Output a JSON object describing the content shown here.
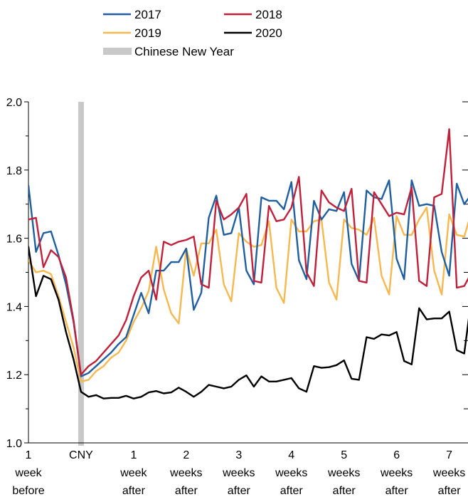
{
  "chart_data": {
    "type": "line",
    "ylim": [
      1.0,
      2.0
    ],
    "yticks": [
      {
        "value": 1.0,
        "label": "1.0"
      },
      {
        "value": 1.2,
        "label": "1.2"
      },
      {
        "value": 1.4,
        "label": "1.4"
      },
      {
        "value": 1.6,
        "label": "1.6"
      },
      {
        "value": 1.8,
        "label": "1.8"
      },
      {
        "value": 2.0,
        "label": "2.0"
      }
    ],
    "x_ticks": [
      {
        "day": -7,
        "lines": [
          "1",
          "week",
          "before"
        ]
      },
      {
        "day": 0,
        "lines": [
          "CNY"
        ]
      },
      {
        "day": 7,
        "lines": [
          "1",
          "week",
          "after"
        ]
      },
      {
        "day": 14,
        "lines": [
          "2",
          "weeks",
          "after"
        ]
      },
      {
        "day": 21,
        "lines": [
          "3",
          "weeks",
          "after"
        ]
      },
      {
        "day": 28,
        "lines": [
          "4",
          "weeks",
          "after"
        ]
      },
      {
        "day": 35,
        "lines": [
          "5",
          "weeks",
          "after"
        ]
      },
      {
        "day": 42,
        "lines": [
          "6",
          "weeks",
          "after"
        ]
      },
      {
        "day": 49,
        "lines": [
          "7",
          "weeks",
          "after"
        ]
      }
    ],
    "x_range": [
      -7,
      51.5
    ],
    "x": [
      -7,
      -6,
      -5,
      -4,
      -3,
      -2,
      -1,
      0,
      1,
      2,
      3,
      4,
      5,
      6,
      7,
      8,
      9,
      10,
      11,
      12,
      13,
      14,
      15,
      16,
      17,
      18,
      19,
      20,
      21,
      22,
      23,
      24,
      25,
      26,
      27,
      28,
      29,
      30,
      31,
      32,
      33,
      34,
      35,
      36,
      37,
      38,
      39,
      40,
      41,
      42,
      43,
      44,
      45,
      46,
      47,
      48,
      49,
      50,
      51,
      52
    ],
    "series": [
      {
        "name": "2017",
        "color": "#1f5fa0",
        "values": [
          1.755,
          1.56,
          1.615,
          1.62,
          1.55,
          1.465,
          1.355,
          1.195,
          1.205,
          1.225,
          1.245,
          1.265,
          1.29,
          1.31,
          1.375,
          1.44,
          1.38,
          1.505,
          1.505,
          1.53,
          1.53,
          1.57,
          1.39,
          1.44,
          1.66,
          1.725,
          1.61,
          1.615,
          1.69,
          1.505,
          1.465,
          1.72,
          1.71,
          1.71,
          1.685,
          1.765,
          1.535,
          1.48,
          1.71,
          1.655,
          1.685,
          1.68,
          1.735,
          1.525,
          1.475,
          1.74,
          1.72,
          1.715,
          1.77,
          1.54,
          1.48,
          1.77,
          1.695,
          1.7,
          1.695,
          1.56,
          1.49,
          1.76,
          1.7,
          1.73
        ]
      },
      {
        "name": "2018",
        "color": "#c0203a",
        "values": [
          1.655,
          1.66,
          1.515,
          1.565,
          1.545,
          1.485,
          1.36,
          1.2,
          1.225,
          1.24,
          1.265,
          1.29,
          1.315,
          1.36,
          1.43,
          1.485,
          1.505,
          1.42,
          1.59,
          1.58,
          1.59,
          1.595,
          1.605,
          1.465,
          1.455,
          1.71,
          1.655,
          1.67,
          1.69,
          1.73,
          1.475,
          1.47,
          1.695,
          1.65,
          1.655,
          1.69,
          1.78,
          1.5,
          1.46,
          1.74,
          1.705,
          1.69,
          1.68,
          1.745,
          1.475,
          1.47,
          1.735,
          1.7,
          1.665,
          1.675,
          1.67,
          1.75,
          1.475,
          1.46,
          1.72,
          1.73,
          1.92,
          1.455,
          1.46,
          1.5
        ]
      },
      {
        "name": "2019",
        "color": "#f7b84f",
        "values": [
          1.535,
          1.5,
          1.505,
          1.495,
          1.43,
          1.355,
          1.28,
          1.18,
          1.185,
          1.21,
          1.225,
          1.25,
          1.265,
          1.3,
          1.355,
          1.395,
          1.445,
          1.575,
          1.45,
          1.38,
          1.35,
          1.57,
          1.49,
          1.585,
          1.585,
          1.625,
          1.465,
          1.415,
          1.615,
          1.59,
          1.575,
          1.58,
          1.65,
          1.455,
          1.41,
          1.655,
          1.62,
          1.62,
          1.65,
          1.655,
          1.47,
          1.42,
          1.655,
          1.63,
          1.625,
          1.61,
          1.66,
          1.49,
          1.435,
          1.665,
          1.61,
          1.61,
          1.655,
          1.69,
          1.505,
          1.435,
          1.67,
          1.61,
          1.605,
          1.68
        ]
      },
      {
        "name": "2020",
        "color": "#000000",
        "values": [
          1.575,
          1.43,
          1.49,
          1.48,
          1.42,
          1.325,
          1.245,
          1.15,
          1.135,
          1.14,
          1.13,
          1.132,
          1.132,
          1.138,
          1.13,
          1.135,
          1.148,
          1.152,
          1.145,
          1.148,
          1.162,
          1.15,
          1.135,
          1.15,
          1.17,
          1.165,
          1.16,
          1.165,
          1.185,
          1.198,
          1.165,
          1.195,
          1.18,
          1.18,
          1.185,
          1.19,
          1.16,
          1.15,
          1.225,
          1.22,
          1.222,
          1.228,
          1.242,
          1.188,
          1.185,
          1.31,
          1.305,
          1.318,
          1.315,
          1.325,
          1.24,
          1.23,
          1.395,
          1.362,
          1.365,
          1.365,
          1.385,
          1.272,
          1.262,
          1.432
        ]
      }
    ],
    "shaded_region": {
      "day": 0,
      "label": "Chinese New Year",
      "color": "#c8c8c8"
    },
    "legend": [
      {
        "label": "2017",
        "color": "#1f5fa0",
        "kind": "line"
      },
      {
        "label": "2018",
        "color": "#c0203a",
        "kind": "line"
      },
      {
        "label": "2019",
        "color": "#f7b84f",
        "kind": "line"
      },
      {
        "label": "2020",
        "color": "#000000",
        "kind": "line"
      },
      {
        "label": "Chinese New Year",
        "color": "#c8c8c8",
        "kind": "band"
      }
    ],
    "legend_placement": "top-center",
    "grid": false,
    "title": "",
    "xlabel": "",
    "ylabel": ""
  }
}
